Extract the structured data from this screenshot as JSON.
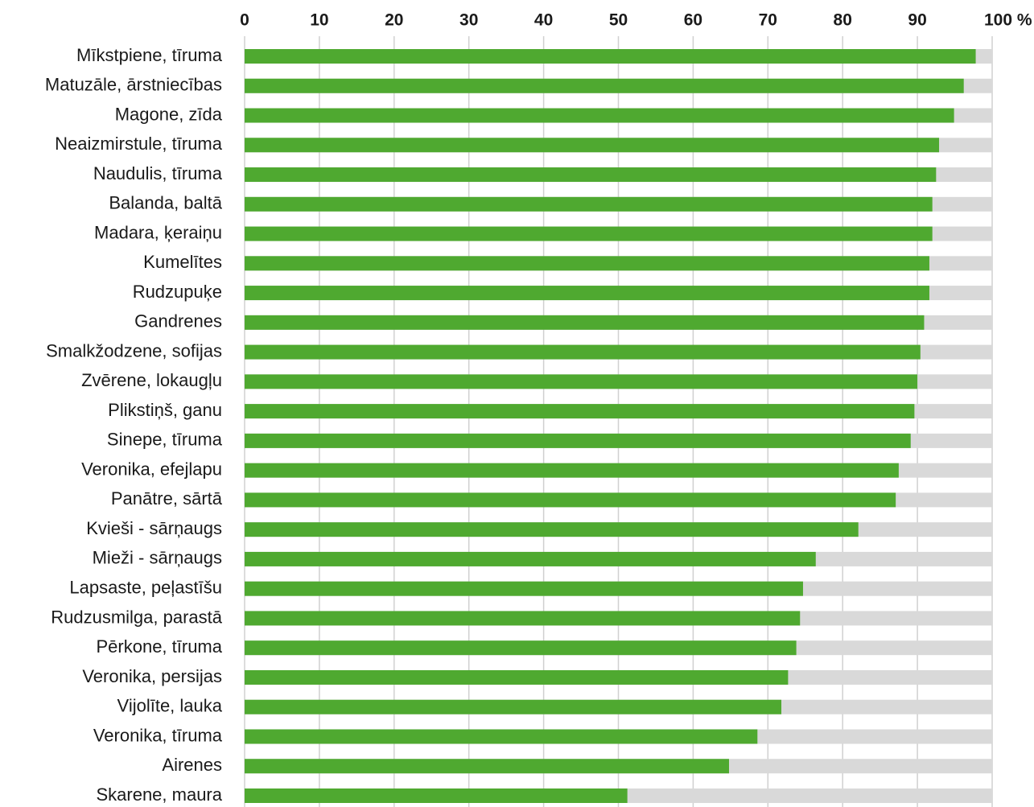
{
  "chart_data": {
    "type": "bar",
    "orientation": "horizontal",
    "categories": [
      "Mīkstpiene, tīruma",
      "Matuzāle, ārstniecības",
      "Magone, zīda",
      "Neaizmirstule, tīruma",
      "Naudulis, tīruma",
      "Balanda, baltā",
      "Madara, ķeraiņu",
      "Kumelītes",
      "Rudzupuķe",
      "Gandrenes",
      "Smalkžodzene, sofijas",
      "Zvērene, lokaugļu",
      "Plikstiņš, ganu",
      "Sinepe, tīruma",
      "Veronika, efejlapu",
      "Panātre, sārtā",
      "Kvieši - sārņaugs",
      "Mieži - sārņaugs",
      "Lapsaste, peļastīšu",
      "Rudzusmilga, parastā",
      "Pērkone, tīruma",
      "Veronika, persijas",
      "Vijolīte, lauka",
      "Veronika, tīruma",
      "Airenes",
      "Skarene, maura"
    ],
    "values": [
      97.8,
      96.2,
      94.9,
      92.9,
      92.5,
      92.0,
      92.0,
      91.6,
      91.6,
      90.9,
      90.4,
      90.0,
      89.6,
      89.1,
      87.5,
      87.1,
      82.1,
      76.4,
      74.7,
      74.3,
      73.8,
      72.7,
      71.8,
      68.6,
      64.8,
      51.2
    ],
    "color": "#4fa930",
    "track_color": "#d9d9d9",
    "xlim": [
      0,
      100
    ],
    "xticks": [
      0,
      10,
      20,
      30,
      40,
      50,
      60,
      70,
      80,
      90,
      {
        "value": 100,
        "label": "100 %"
      }
    ],
    "grid": true
  }
}
